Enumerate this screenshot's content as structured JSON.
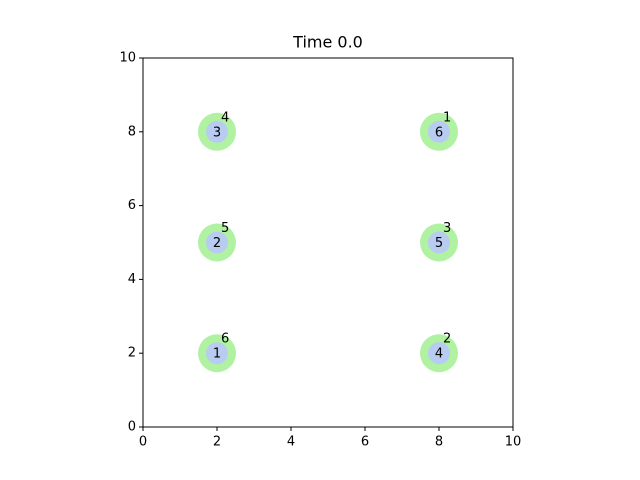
{
  "chart_data": {
    "type": "scatter",
    "title": "Time 0.0",
    "xlim": [
      0,
      10
    ],
    "ylim": [
      0,
      10
    ],
    "xticks": [
      0,
      2,
      4,
      6,
      8,
      10
    ],
    "yticks": [
      0,
      2,
      4,
      6,
      8,
      10
    ],
    "grid": false,
    "series": [
      {
        "color": "#b0f2a2",
        "x": [
          2,
          2,
          2,
          8,
          8,
          8
        ],
        "y": [
          2,
          5,
          8,
          2,
          5,
          8
        ],
        "labels": [
          "6",
          "5",
          "4",
          "2",
          "3",
          "1"
        ]
      },
      {
        "color": "#b8cbf0",
        "x": [
          2,
          2,
          2,
          8,
          8,
          8
        ],
        "y": [
          2,
          5,
          8,
          2,
          5,
          8
        ],
        "labels": [
          "1",
          "2",
          "3",
          "4",
          "5",
          "6"
        ]
      }
    ]
  }
}
